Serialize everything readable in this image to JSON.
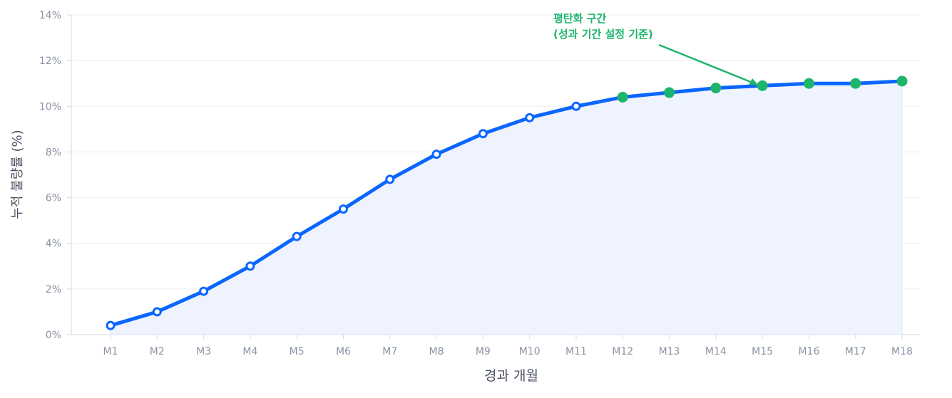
{
  "chart_data": {
    "type": "line",
    "title": "",
    "xlabel": "경과 개월",
    "ylabel": "누적 불량률 (%)",
    "categories": [
      "M1",
      "M2",
      "M3",
      "M4",
      "M5",
      "M6",
      "M7",
      "M8",
      "M9",
      "M10",
      "M11",
      "M12",
      "M13",
      "M14",
      "M15",
      "M16",
      "M17",
      "M18"
    ],
    "series": [
      {
        "values": [
          0.4,
          1.0,
          1.9,
          3.0,
          4.3,
          5.5,
          6.8,
          7.9,
          8.8,
          9.5,
          10.0,
          10.4,
          10.6,
          10.8,
          10.9,
          11.0,
          11.0,
          11.1
        ]
      }
    ],
    "plateau_start_index": 11,
    "ylim": [
      0,
      14
    ],
    "yticks": [
      "0%",
      "2%",
      "4%",
      "6%",
      "8%",
      "10%",
      "12%",
      "14%"
    ],
    "grid": true,
    "area_fill": true,
    "annotation": {
      "lines": [
        "평탄화 구간",
        "(성과 기간 설정 기준)"
      ],
      "target": "M15"
    },
    "colors": {
      "line": "#0a66ff",
      "plateau_marker": "#1db56c",
      "fill": "#eef3fe",
      "grid": "#ebedf0",
      "axis_text": "#8a93a3"
    }
  }
}
